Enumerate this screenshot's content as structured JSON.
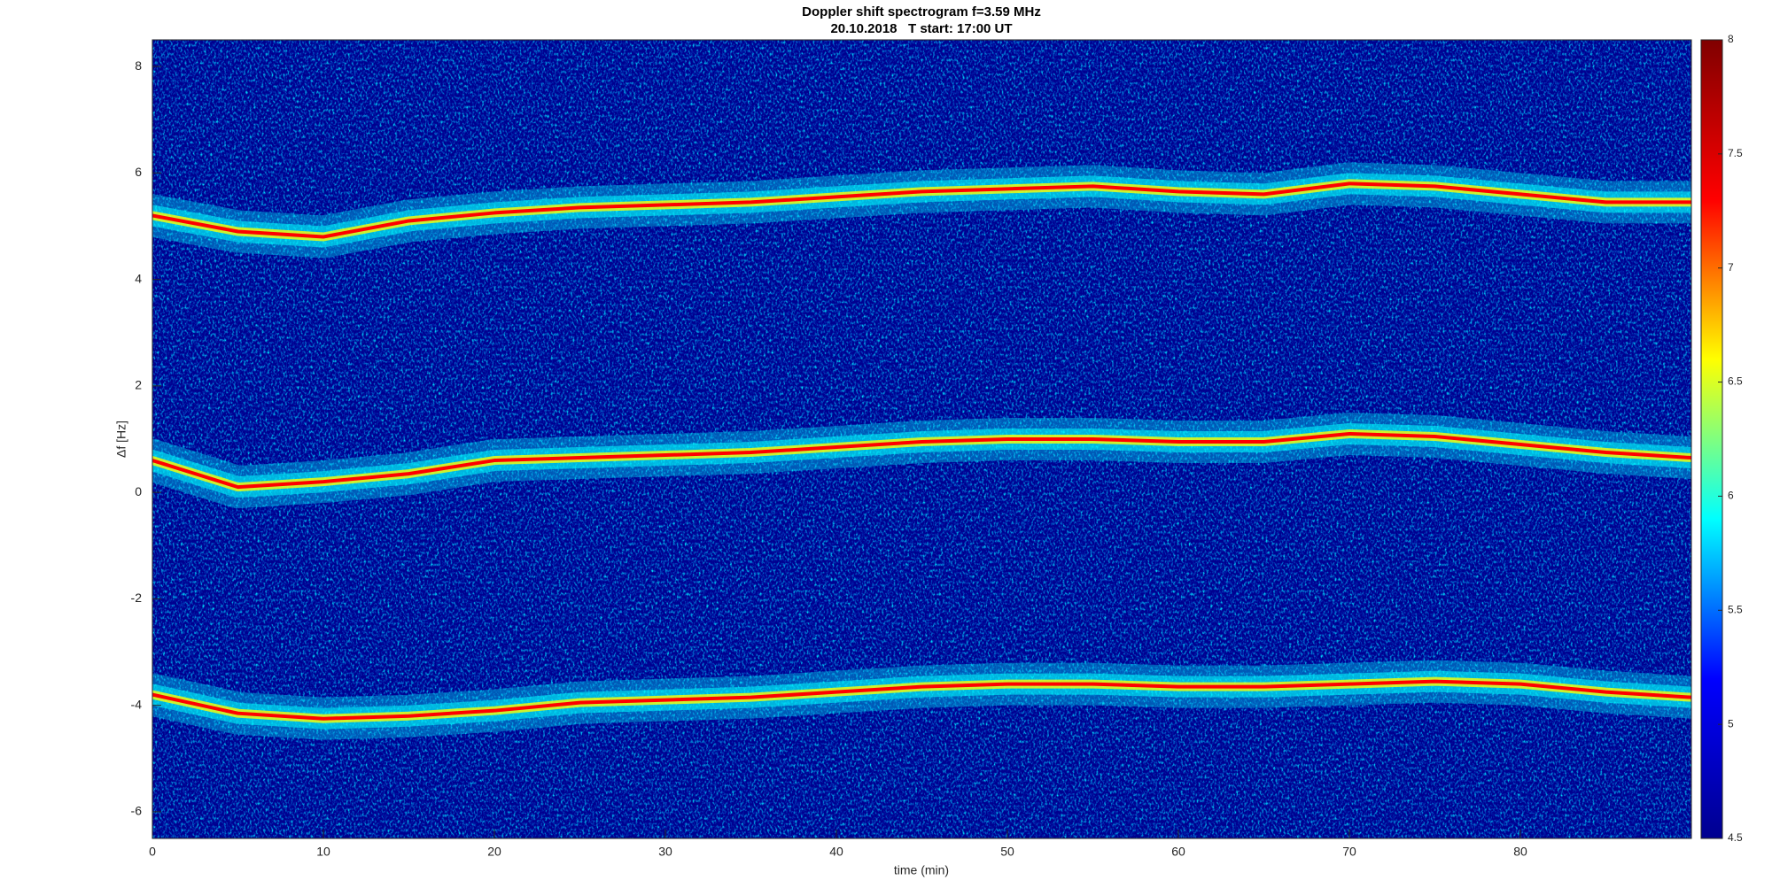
{
  "chart_data": {
    "type": "spectrogram",
    "title": "Doppler shift spectrogram f=3.59 MHz",
    "subtitle": "20.10.2018   T start: 17:00 UT",
    "xlabel": "time (min)",
    "ylabel": "Δf [Hz]",
    "x": [
      0,
      5,
      10,
      15,
      20,
      25,
      30,
      35,
      40,
      45,
      50,
      55,
      60,
      65,
      70,
      75,
      80,
      85,
      90
    ],
    "series": [
      {
        "color": "#ff0000",
        "values": [
          5.2,
          4.9,
          4.8,
          5.1,
          5.25,
          5.35,
          5.4,
          5.45,
          5.55,
          5.65,
          5.7,
          5.75,
          5.65,
          5.6,
          5.8,
          5.75,
          5.6,
          5.45,
          5.45
        ]
      },
      {
        "color": "#ff0000",
        "values": [
          0.6,
          0.1,
          0.2,
          0.35,
          0.6,
          0.65,
          0.7,
          0.75,
          0.85,
          0.95,
          1.0,
          1.0,
          0.95,
          0.95,
          1.1,
          1.05,
          0.9,
          0.75,
          0.65
        ]
      },
      {
        "color": "#ff0000",
        "values": [
          -3.8,
          -4.15,
          -4.25,
          -4.2,
          -4.1,
          -3.95,
          -3.9,
          -3.85,
          -3.75,
          -3.65,
          -3.6,
          -3.6,
          -3.65,
          -3.65,
          -3.6,
          -3.55,
          -3.6,
          -3.75,
          -3.85
        ]
      }
    ],
    "xlim": [
      0,
      90
    ],
    "xticks": [
      0,
      10,
      20,
      30,
      40,
      50,
      60,
      70,
      80
    ],
    "ylim": [
      -6.5,
      8.5
    ],
    "yticks": [
      -6,
      -4,
      -2,
      0,
      2,
      4,
      6,
      8
    ],
    "colormap": [
      "#00008f",
      "#0000ff",
      "#00ffff",
      "#ffff00",
      "#ff0000",
      "#800000"
    ],
    "clim": [
      4.5,
      8
    ],
    "cticks": [
      4.5,
      5,
      5.5,
      6,
      6.5,
      7,
      7.5,
      8
    ]
  }
}
